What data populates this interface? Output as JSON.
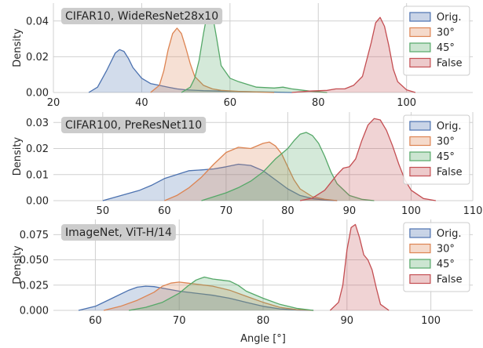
{
  "figure": {
    "xlabel": "Angle [°]"
  },
  "colors": {
    "Orig.": "#4c72b0",
    "30°": "#dd8452",
    "45°": "#55a868",
    "False": "#c44e52",
    "panel_bg": "#ffffff",
    "grid": "#d0d0d0",
    "title_box": "#cccccc"
  },
  "chart_data": [
    {
      "type": "area",
      "title": "CIFAR10, WideResNet28x10",
      "ylabel": "Density",
      "xlim": [
        20,
        115
      ],
      "ylim": [
        0,
        0.05
      ],
      "xticks": [
        20,
        40,
        60,
        80,
        100
      ],
      "yticks": [
        0.0,
        0.02,
        0.04
      ],
      "ytick_labels": [
        "0.00",
        "0.02",
        "0.04"
      ],
      "legend": {
        "position": "top-right",
        "entries": [
          "Orig.",
          "30°",
          "45°",
          "False"
        ]
      },
      "series": [
        {
          "name": "Orig.",
          "x": [
            28,
            30,
            32,
            34,
            35,
            36,
            37,
            38,
            40,
            42,
            44,
            46,
            48,
            50,
            54,
            58,
            62,
            66,
            70,
            74
          ],
          "y": [
            0,
            0.003,
            0.012,
            0.022,
            0.024,
            0.023,
            0.019,
            0.014,
            0.008,
            0.005,
            0.004,
            0.003,
            0.002,
            0.0015,
            0.001,
            0.0008,
            0.0006,
            0.0004,
            0.0002,
            0
          ]
        },
        {
          "name": "30°",
          "x": [
            42,
            44,
            45,
            46,
            47,
            48,
            49,
            50,
            51,
            52,
            54,
            56,
            58,
            62,
            66,
            70
          ],
          "y": [
            0,
            0.004,
            0.012,
            0.024,
            0.033,
            0.036,
            0.033,
            0.025,
            0.016,
            0.009,
            0.004,
            0.002,
            0.0012,
            0.0006,
            0.0003,
            0
          ]
        },
        {
          "name": "45°",
          "x": [
            49,
            51,
            52,
            53,
            54,
            55,
            56,
            57,
            58,
            60,
            62,
            66,
            70,
            72,
            74,
            78,
            82
          ],
          "y": [
            0,
            0.003,
            0.008,
            0.018,
            0.033,
            0.046,
            0.044,
            0.03,
            0.015,
            0.008,
            0.006,
            0.003,
            0.0025,
            0.003,
            0.002,
            0.0008,
            0
          ]
        },
        {
          "name": "False",
          "x": [
            74,
            78,
            82,
            84,
            86,
            88,
            90,
            92,
            93,
            94,
            95,
            96,
            97,
            98,
            100,
            102
          ],
          "y": [
            0,
            0.0008,
            0.0012,
            0.002,
            0.002,
            0.004,
            0.009,
            0.028,
            0.039,
            0.042,
            0.037,
            0.026,
            0.013,
            0.006,
            0.0015,
            0
          ]
        }
      ]
    },
    {
      "type": "area",
      "title": "CIFAR100, PreResNet110",
      "ylabel": "Density",
      "xlim": [
        42,
        110
      ],
      "ylim": [
        0,
        0.034
      ],
      "xticks": [
        50,
        60,
        70,
        80,
        90,
        100,
        110
      ],
      "yticks": [
        0.0,
        0.01,
        0.02,
        0.03
      ],
      "ytick_labels": [
        "0.00",
        "0.01",
        "0.02",
        "0.03"
      ],
      "legend": {
        "position": "top-right",
        "entries": [
          "Orig.",
          "30°",
          "45°",
          "False"
        ]
      },
      "series": [
        {
          "name": "Orig.",
          "x": [
            50,
            53,
            56,
            58,
            60,
            62,
            64,
            66,
            68,
            70,
            72,
            74,
            76,
            78,
            80,
            82,
            84,
            86,
            88
          ],
          "y": [
            0,
            0.002,
            0.004,
            0.006,
            0.0085,
            0.01,
            0.0115,
            0.0118,
            0.0122,
            0.013,
            0.014,
            0.0135,
            0.0115,
            0.008,
            0.0045,
            0.002,
            0.0008,
            0.0002,
            0
          ]
        },
        {
          "name": "30°",
          "x": [
            60,
            62,
            64,
            66,
            68,
            70,
            72,
            74,
            76,
            77,
            78,
            79,
            80,
            81,
            82,
            84,
            86,
            88
          ],
          "y": [
            0,
            0.002,
            0.005,
            0.009,
            0.014,
            0.0185,
            0.0205,
            0.02,
            0.022,
            0.0225,
            0.021,
            0.018,
            0.013,
            0.008,
            0.0045,
            0.0015,
            0.0005,
            0
          ]
        },
        {
          "name": "45°",
          "x": [
            66,
            68,
            70,
            72,
            74,
            76,
            78,
            80,
            81,
            82,
            83,
            84,
            85,
            86,
            87,
            88,
            90,
            92,
            94
          ],
          "y": [
            0,
            0.0015,
            0.003,
            0.005,
            0.0075,
            0.011,
            0.016,
            0.02,
            0.023,
            0.0255,
            0.0262,
            0.025,
            0.022,
            0.017,
            0.011,
            0.0065,
            0.002,
            0.0005,
            0
          ]
        },
        {
          "name": "False",
          "x": [
            82,
            84,
            86,
            88,
            89,
            90,
            91,
            92,
            93,
            94,
            95,
            96,
            97,
            98,
            99,
            100,
            102,
            104
          ],
          "y": [
            0,
            0.001,
            0.004,
            0.01,
            0.0125,
            0.013,
            0.016,
            0.023,
            0.029,
            0.0315,
            0.031,
            0.027,
            0.021,
            0.014,
            0.008,
            0.004,
            0.0008,
            0
          ]
        }
      ]
    },
    {
      "type": "area",
      "title": "ImageNet, ViT-H/14",
      "ylabel": "Density",
      "xlim": [
        55,
        105
      ],
      "ylim": [
        0,
        0.09
      ],
      "xticks": [
        60,
        70,
        80,
        90,
        100
      ],
      "yticks": [
        0.0,
        0.025,
        0.05,
        0.075
      ],
      "ytick_labels": [
        "0.000",
        "0.025",
        "0.050",
        "0.075"
      ],
      "legend": {
        "position": "top-right",
        "entries": [
          "Orig.",
          "30°",
          "45°",
          "False"
        ]
      },
      "series": [
        {
          "name": "Orig.",
          "x": [
            58,
            60,
            62,
            64,
            65,
            66,
            67,
            68,
            70,
            72,
            74,
            76,
            78,
            80,
            82,
            84,
            86
          ],
          "y": [
            0,
            0.004,
            0.012,
            0.02,
            0.023,
            0.024,
            0.0235,
            0.022,
            0.019,
            0.017,
            0.015,
            0.012,
            0.008,
            0.004,
            0.0015,
            0.0004,
            0
          ]
        },
        {
          "name": "30°",
          "x": [
            61,
            63,
            65,
            67,
            68,
            69,
            70,
            71,
            72,
            74,
            76,
            78,
            80,
            82,
            84,
            86
          ],
          "y": [
            0,
            0.004,
            0.01,
            0.018,
            0.024,
            0.027,
            0.028,
            0.027,
            0.026,
            0.024,
            0.02,
            0.014,
            0.008,
            0.003,
            0.0008,
            0
          ]
        },
        {
          "name": "45°",
          "x": [
            64,
            66,
            68,
            70,
            71,
            72,
            73,
            74,
            75,
            76,
            77,
            78,
            80,
            82,
            84,
            86
          ],
          "y": [
            0,
            0.003,
            0.008,
            0.017,
            0.024,
            0.03,
            0.033,
            0.031,
            0.03,
            0.029,
            0.025,
            0.019,
            0.012,
            0.006,
            0.002,
            0
          ]
        },
        {
          "name": "False",
          "x": [
            88,
            89,
            89.5,
            90,
            90.5,
            91,
            91.5,
            92,
            92.5,
            93,
            93.5,
            94,
            95
          ],
          "y": [
            0,
            0.008,
            0.025,
            0.06,
            0.082,
            0.085,
            0.072,
            0.055,
            0.05,
            0.04,
            0.022,
            0.006,
            0
          ]
        }
      ]
    }
  ]
}
